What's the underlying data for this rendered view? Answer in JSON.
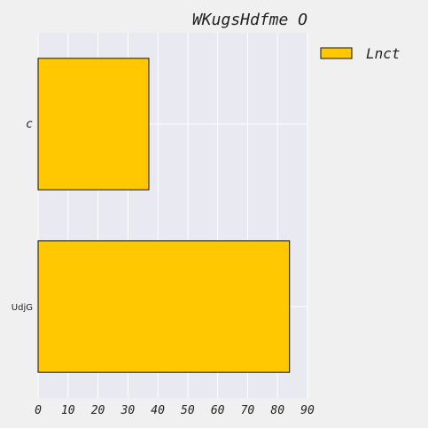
{
  "chart_data": {
    "type": "bar",
    "orientation": "horizontal",
    "title": "WKugsHdfme O",
    "xlabel": "",
    "ylabel": "",
    "categories": [
      "c",
      "UdjG"
    ],
    "series": [
      {
        "name": "Lnct",
        "values": [
          37,
          84
        ]
      }
    ],
    "xlim": [
      0,
      90
    ],
    "xticks": [
      0,
      10,
      20,
      30,
      40,
      50,
      60,
      70,
      80,
      90
    ],
    "grid": true,
    "legend": "top-right",
    "colors": {
      "bar": "#ffc800",
      "bar_edge": "#111111",
      "plot_bg": "#e8e9f1",
      "grid": "#ffffff",
      "figure_bg": "#f0f0f0"
    }
  }
}
